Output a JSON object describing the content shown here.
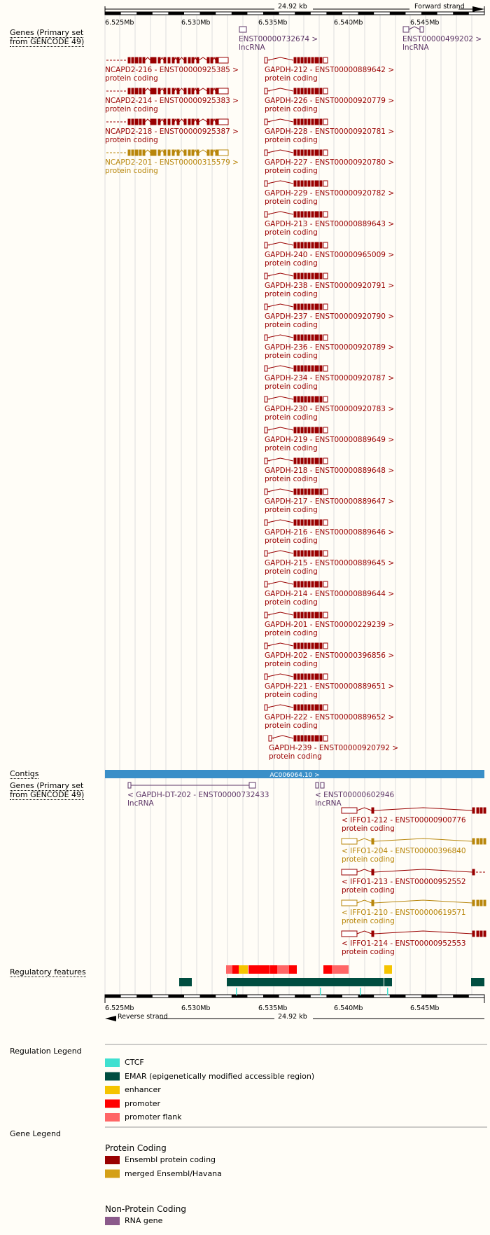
{
  "ruler": {
    "span": "24.92 kb",
    "forward_strand": "Forward strand",
    "reverse_strand": "Reverse strand",
    "ticks": [
      "6.525Mb",
      "6.530Mb",
      "6.535Mb",
      "6.540Mb",
      "6.545Mb"
    ]
  },
  "tracks": {
    "genes_forward": "Genes (Primary set from GENCODE 49)",
    "contigs": "Contigs",
    "genes_reverse": "Genes (Primary set from GENCODE 49)",
    "regulatory": "Regulatory features"
  },
  "contig_label": "AC006064.10 >",
  "forward_transcripts": [
    {
      "name": "NCAPD2-216 - ENST00000925385 >",
      "biotype": "protein coding",
      "color": "#990000"
    },
    {
      "name": "NCAPD2-214 - ENST00000925383 >",
      "biotype": "protein coding",
      "color": "#990000"
    },
    {
      "name": "NCAPD2-218 - ENST00000925387 >",
      "biotype": "protein coding",
      "color": "#990000"
    },
    {
      "name": "NCAPD2-201 - ENST00000315579 >",
      "biotype": "protein coding",
      "color": "#b8860b"
    },
    {
      "name": "ENST00000732674 >",
      "biotype": "lncRNA",
      "color": "#5c3566"
    },
    {
      "name": "ENST00000499202 >",
      "biotype": "lncRNA",
      "color": "#5c3566"
    },
    {
      "name": "GAPDH-212 - ENST00000889642 >",
      "biotype": "protein coding",
      "color": "#990000"
    },
    {
      "name": "GAPDH-226 - ENST00000920779 >",
      "biotype": "protein coding",
      "color": "#990000"
    },
    {
      "name": "GAPDH-228 - ENST00000920781 >",
      "biotype": "protein coding",
      "color": "#990000"
    },
    {
      "name": "GAPDH-227 - ENST00000920780 >",
      "biotype": "protein coding",
      "color": "#990000"
    },
    {
      "name": "GAPDH-229 - ENST00000920782 >",
      "biotype": "protein coding",
      "color": "#990000"
    },
    {
      "name": "GAPDH-213 - ENST00000889643 >",
      "biotype": "protein coding",
      "color": "#990000"
    },
    {
      "name": "GAPDH-240 - ENST00000965009 >",
      "biotype": "protein coding",
      "color": "#990000"
    },
    {
      "name": "GAPDH-238 - ENST00000920791 >",
      "biotype": "protein coding",
      "color": "#990000"
    },
    {
      "name": "GAPDH-237 - ENST00000920790 >",
      "biotype": "protein coding",
      "color": "#990000"
    },
    {
      "name": "GAPDH-236 - ENST00000920789 >",
      "biotype": "protein coding",
      "color": "#990000"
    },
    {
      "name": "GAPDH-234 - ENST00000920787 >",
      "biotype": "protein coding",
      "color": "#990000"
    },
    {
      "name": "GAPDH-230 - ENST00000920783 >",
      "biotype": "protein coding",
      "color": "#990000"
    },
    {
      "name": "GAPDH-219 - ENST00000889649 >",
      "biotype": "protein coding",
      "color": "#990000"
    },
    {
      "name": "GAPDH-218 - ENST00000889648 >",
      "biotype": "protein coding",
      "color": "#990000"
    },
    {
      "name": "GAPDH-217 - ENST00000889647 >",
      "biotype": "protein coding",
      "color": "#990000"
    },
    {
      "name": "GAPDH-216 - ENST00000889646 >",
      "biotype": "protein coding",
      "color": "#990000"
    },
    {
      "name": "GAPDH-215 - ENST00000889645 >",
      "biotype": "protein coding",
      "color": "#990000"
    },
    {
      "name": "GAPDH-214 - ENST00000889644 >",
      "biotype": "protein coding",
      "color": "#990000"
    },
    {
      "name": "GAPDH-201 - ENST00000229239 >",
      "biotype": "protein coding",
      "color": "#990000"
    },
    {
      "name": "GAPDH-202 - ENST00000396856 >",
      "biotype": "protein coding",
      "color": "#990000"
    },
    {
      "name": "GAPDH-221 - ENST00000889651 >",
      "biotype": "protein coding",
      "color": "#990000"
    },
    {
      "name": "GAPDH-222 - ENST00000889652 >",
      "biotype": "protein coding",
      "color": "#990000"
    },
    {
      "name": "GAPDH-239 - ENST00000920792 >",
      "biotype": "protein coding",
      "color": "#990000"
    }
  ],
  "reverse_transcripts": [
    {
      "name": "< GAPDH-DT-202 - ENST00000732433",
      "biotype": "lncRNA",
      "color": "#5c3566"
    },
    {
      "name": "< ENST00000602946",
      "biotype": "lncRNA",
      "color": "#5c3566"
    },
    {
      "name": "< IFFO1-212 - ENST00000900776",
      "biotype": "protein coding",
      "color": "#990000"
    },
    {
      "name": "< IFFO1-204 - ENST00000396840",
      "biotype": "protein coding",
      "color": "#b8860b"
    },
    {
      "name": "< IFFO1-213 - ENST00000952552",
      "biotype": "protein coding",
      "color": "#990000"
    },
    {
      "name": "< IFFO1-210 - ENST00000619571",
      "biotype": "protein coding",
      "color": "#b8860b"
    },
    {
      "name": "< IFFO1-214 - ENST00000952553",
      "biotype": "protein coding",
      "color": "#990000"
    }
  ],
  "regulation_legend": {
    "title": "Regulation Legend",
    "items": [
      {
        "label": "CTCF",
        "color": "#40e0d0"
      },
      {
        "label": "EMAR (epigenetically modified accessible region)",
        "color": "#004d40"
      },
      {
        "label": "enhancer",
        "color": "#f5c400"
      },
      {
        "label": "promoter",
        "color": "#ff0000"
      },
      {
        "label": "promoter flank",
        "color": "#ff6666"
      }
    ]
  },
  "gene_legend": {
    "title": "Gene Legend",
    "protein_coding_heading": "Protein Coding",
    "protein_coding_items": [
      {
        "label": "Ensembl protein coding",
        "color": "#990000"
      },
      {
        "label": "merged Ensembl/Havana",
        "color": "#d4a017"
      }
    ],
    "non_coding_heading": "Non-Protein Coding",
    "non_coding_items": [
      {
        "label": "RNA gene",
        "color": "#8b5a8b"
      }
    ]
  },
  "colors": {
    "contig": "#3a8fc8",
    "grid": "#dddddd",
    "ctcf": "#40e0d0",
    "emar": "#004d40",
    "enhancer": "#f5c400",
    "promoter": "#ff0000",
    "promoter_flank": "#ff6666"
  }
}
